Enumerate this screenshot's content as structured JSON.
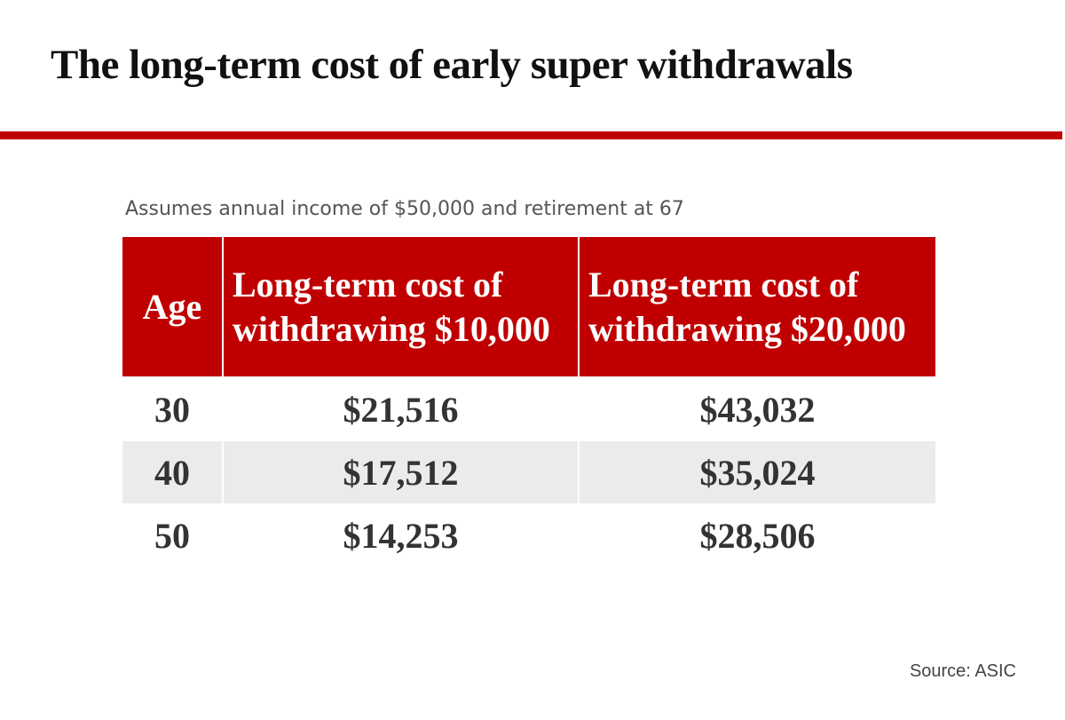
{
  "header": {
    "title": "The long-term cost of early super withdrawals"
  },
  "subtitle": "Assumes annual income of $50,000 and retirement at 67",
  "table": {
    "columns": [
      "Age",
      "Long-term cost of withdrawing $10,000",
      "Long-term cost of withdrawing $20,000"
    ],
    "rows": [
      [
        "30",
        "$21,516",
        "$43,032"
      ],
      [
        "40",
        "$17,512",
        "$35,024"
      ],
      [
        "50",
        "$14,253",
        "$28,506"
      ]
    ]
  },
  "source": "Source: ASIC"
}
